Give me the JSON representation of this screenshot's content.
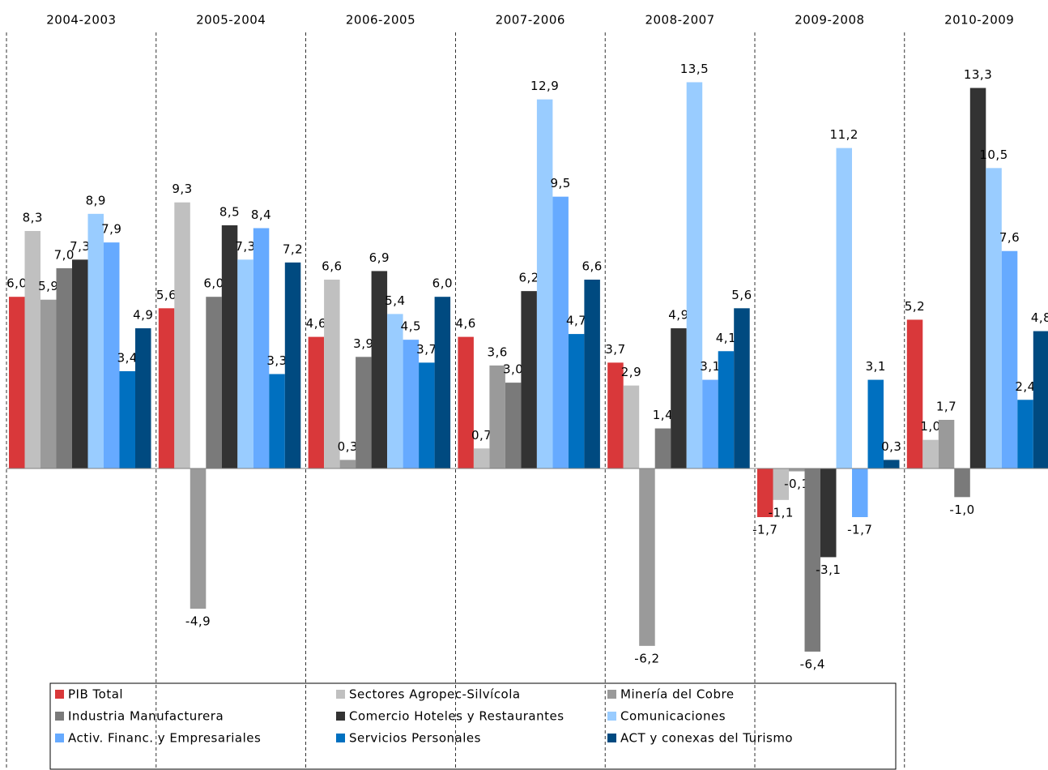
{
  "chart_data": {
    "type": "bar",
    "categories": [
      "2004-2003",
      "2005-2004",
      "2006-2005",
      "2007-2006",
      "2008-2007",
      "2009-2008",
      "2010-2009"
    ],
    "series": [
      {
        "name": "PIB Total",
        "color": "#d9383a",
        "values": [
          6.0,
          5.6,
          4.6,
          4.6,
          3.7,
          -1.7,
          5.2
        ],
        "value_labels": [
          "6,0",
          "5,6",
          "4,6",
          "4,6",
          "3,7",
          "-1,7",
          "5,2"
        ]
      },
      {
        "name": "Sectores Agropec-Silvícola",
        "color": "#c0c0c0",
        "values": [
          8.3,
          9.3,
          6.6,
          0.7,
          2.9,
          -1.1,
          1.0
        ],
        "value_labels": [
          "8,3",
          "9,3",
          "6,6",
          "0,7",
          "2,9",
          "-1,1",
          "1,0"
        ]
      },
      {
        "name": "Minería del Cobre",
        "color": "#9a9a9a",
        "values": [
          5.9,
          -4.9,
          0.3,
          3.6,
          -6.2,
          -0.1,
          1.7
        ],
        "value_labels": [
          "5,9",
          "-4,9",
          "0,3",
          "3,6",
          "-6,2",
          "-0,1",
          "1,7"
        ]
      },
      {
        "name": "Industria Manufacturera",
        "color": "#7a7a7a",
        "values": [
          7.0,
          6.0,
          3.9,
          3.0,
          1.4,
          -6.4,
          -1.0
        ],
        "value_labels": [
          "7,0",
          "6,0",
          "3,9",
          "3,0",
          "1,4",
          "-6,4",
          "-1,0"
        ]
      },
      {
        "name": "Comercio Hoteles y Restaurantes",
        "color": "#333333",
        "values": [
          7.3,
          8.5,
          6.9,
          6.2,
          4.9,
          -3.1,
          13.3
        ],
        "value_labels": [
          "7,3",
          "8,5",
          "6,9",
          "6,2",
          "4,9",
          "-3,1",
          "13,3"
        ]
      },
      {
        "name": "Comunicaciones",
        "color": "#99ccff",
        "values": [
          8.9,
          7.3,
          5.4,
          12.9,
          13.5,
          11.2,
          10.5
        ],
        "value_labels": [
          "8,9",
          "7,3",
          "5,4",
          "12,9",
          "13,5",
          "11,2",
          "10,5"
        ]
      },
      {
        "name": "Activ. Financ. y Empresariales",
        "color": "#66aaff",
        "values": [
          7.9,
          8.4,
          4.5,
          9.5,
          3.1,
          -1.7,
          7.6
        ],
        "value_labels": [
          "7,9",
          "8,4",
          "4,5",
          "9,5",
          "3,1",
          "-1,7",
          "7,6"
        ]
      },
      {
        "name": "Servicios Personales",
        "color": "#0070c0",
        "values": [
          3.4,
          3.3,
          3.7,
          4.7,
          4.1,
          3.1,
          2.4
        ],
        "value_labels": [
          "3,4",
          "3,3",
          "3,7",
          "4,7",
          "4,1",
          "3,1",
          "2,4"
        ]
      },
      {
        "name": "ACT y conexas del Turismo",
        "color": "#004a80",
        "values": [
          4.9,
          7.2,
          6.0,
          6.6,
          5.6,
          0.3,
          4.8
        ],
        "value_labels": [
          "4,9",
          "7,2",
          "6,0",
          "6,6",
          "5,6",
          "0,3",
          "4,8"
        ]
      }
    ]
  }
}
